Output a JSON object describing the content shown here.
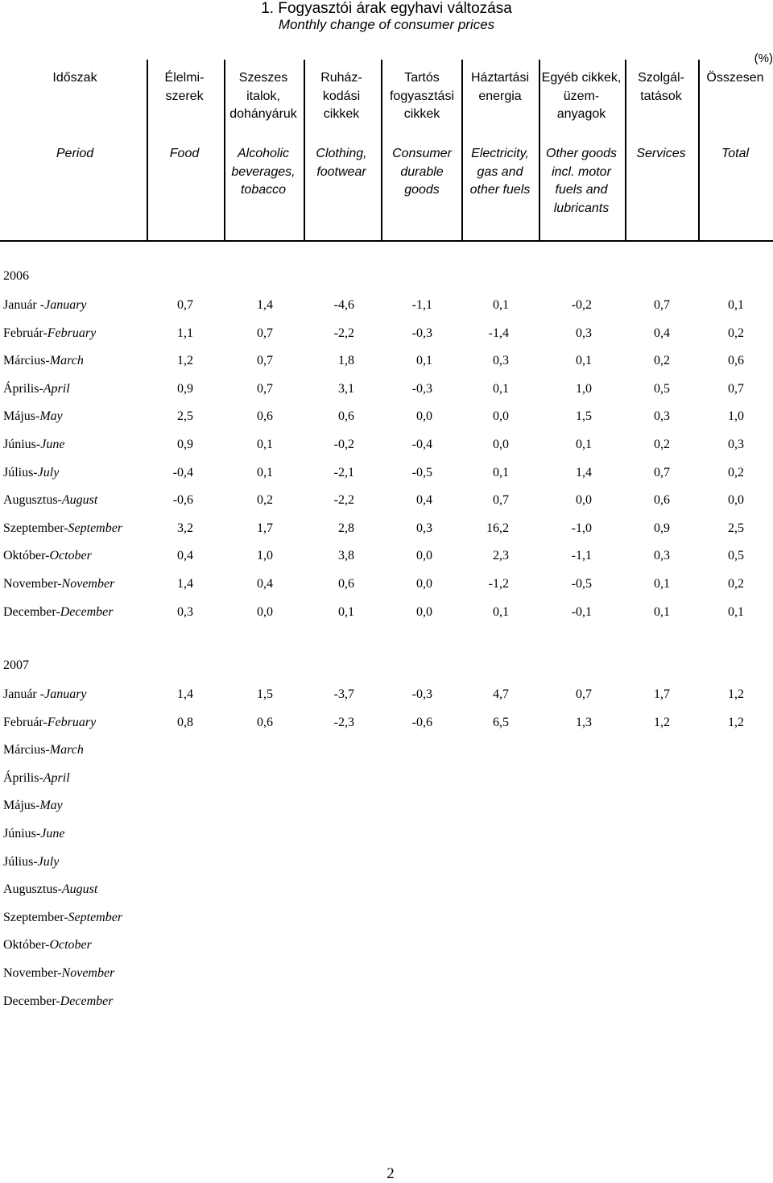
{
  "title": {
    "hu": "1. Fogyasztói árak egyhavi változása",
    "en": "Monthly change of consumer prices"
  },
  "unit": "(%)",
  "columns": [
    {
      "id": "period",
      "hu": [
        "Időszak"
      ],
      "en": [
        "Period"
      ]
    },
    {
      "id": "food",
      "hu": [
        "Élelmi-",
        "szerek"
      ],
      "en": [
        "Food"
      ]
    },
    {
      "id": "alcohol",
      "hu": [
        "Szeszes",
        "italok,",
        "dohányáruk"
      ],
      "en": [
        "Alcoholic",
        "beverages,",
        "tobacco"
      ]
    },
    {
      "id": "clothing",
      "hu": [
        "Ruház-",
        "kodási",
        "cikkek"
      ],
      "en": [
        "Clothing,",
        "footwear"
      ]
    },
    {
      "id": "durable",
      "hu": [
        "Tartós",
        "fogyasztási",
        "cikkek"
      ],
      "en": [
        "Consumer",
        "durable",
        "goods"
      ]
    },
    {
      "id": "energy",
      "hu": [
        "Háztartási",
        "energia"
      ],
      "en": [
        "Electricity,",
        "gas and",
        "other fuels"
      ]
    },
    {
      "id": "other",
      "hu": [
        "Egyéb cikkek,",
        "üzem-",
        "anyagok"
      ],
      "en": [
        "Other goods",
        "incl. motor",
        "fuels and",
        "lubricants"
      ]
    },
    {
      "id": "services",
      "hu": [
        "Szolgál-",
        "tatások"
      ],
      "en": [
        "Services"
      ]
    },
    {
      "id": "total",
      "hu": [
        "Összesen"
      ],
      "en": [
        "Total"
      ]
    }
  ],
  "sections": [
    {
      "year": "2006",
      "rows": [
        {
          "hu": "Január -",
          "en": "January",
          "values": [
            "0,7",
            "1,4",
            "-4,6",
            "-1,1",
            "0,1",
            "-0,2",
            "0,7",
            "0,1"
          ]
        },
        {
          "hu": "Február-",
          "en": "February",
          "values": [
            "1,1",
            "0,7",
            "-2,2",
            "-0,3",
            "-1,4",
            "0,3",
            "0,4",
            "0,2"
          ]
        },
        {
          "hu": "Március-",
          "en": "March",
          "values": [
            "1,2",
            "0,7",
            "1,8",
            "0,1",
            "0,3",
            "0,1",
            "0,2",
            "0,6"
          ]
        },
        {
          "hu": "Április-",
          "en": "April",
          "values": [
            "0,9",
            "0,7",
            "3,1",
            "-0,3",
            "0,1",
            "1,0",
            "0,5",
            "0,7"
          ]
        },
        {
          "hu": "Május-",
          "en": "May",
          "values": [
            "2,5",
            "0,6",
            "0,6",
            "0,0",
            "0,0",
            "1,5",
            "0,3",
            "1,0"
          ]
        },
        {
          "hu": "Június-",
          "en": "June",
          "values": [
            "0,9",
            "0,1",
            "-0,2",
            "-0,4",
            "0,0",
            "0,1",
            "0,2",
            "0,3"
          ]
        },
        {
          "hu": "Július-",
          "en": "July",
          "values": [
            "-0,4",
            "0,1",
            "-2,1",
            "-0,5",
            "0,1",
            "1,4",
            "0,7",
            "0,2"
          ]
        },
        {
          "hu": "Augusztus-",
          "en": "August",
          "values": [
            "-0,6",
            "0,2",
            "-2,2",
            "0,4",
            "0,7",
            "0,0",
            "0,6",
            "0,0"
          ]
        },
        {
          "hu": "Szeptember-",
          "en": "September",
          "values": [
            "3,2",
            "1,7",
            "2,8",
            "0,3",
            "16,2",
            "-1,0",
            "0,9",
            "2,5"
          ]
        },
        {
          "hu": "Október-",
          "en": "October",
          "values": [
            "0,4",
            "1,0",
            "3,8",
            "0,0",
            "2,3",
            "-1,1",
            "0,3",
            "0,5"
          ]
        },
        {
          "hu": "November-",
          "en": "November",
          "values": [
            "1,4",
            "0,4",
            "0,6",
            "0,0",
            "-1,2",
            "-0,5",
            "0,1",
            "0,2"
          ]
        },
        {
          "hu": "December-",
          "en": "December",
          "values": [
            "0,3",
            "0,0",
            "0,1",
            "0,0",
            "0,1",
            "-0,1",
            "0,1",
            "0,1"
          ]
        }
      ]
    },
    {
      "year": "2007",
      "rows": [
        {
          "hu": "Január -",
          "en": "January",
          "values": [
            "1,4",
            "1,5",
            "-3,7",
            "-0,3",
            "4,7",
            "0,7",
            "1,7",
            "1,2"
          ]
        },
        {
          "hu": "Február-",
          "en": "February",
          "values": [
            "0,8",
            "0,6",
            "-2,3",
            "-0,6",
            "6,5",
            "1,3",
            "1,2",
            "1,2"
          ]
        },
        {
          "hu": "Március-",
          "en": "March",
          "values": []
        },
        {
          "hu": "Április-",
          "en": "April",
          "values": []
        },
        {
          "hu": "Május-",
          "en": "May",
          "values": []
        },
        {
          "hu": "Június-",
          "en": "June",
          "values": []
        },
        {
          "hu": "Július-",
          "en": "July",
          "values": []
        },
        {
          "hu": "Augusztus-",
          "en": "August",
          "values": []
        },
        {
          "hu": "Szeptember-",
          "en": "September",
          "values": []
        },
        {
          "hu": "Október-",
          "en": "October",
          "values": []
        },
        {
          "hu": "November-",
          "en": "November",
          "values": []
        },
        {
          "hu": "December-",
          "en": "December",
          "values": []
        }
      ]
    }
  ],
  "page_number": "2"
}
